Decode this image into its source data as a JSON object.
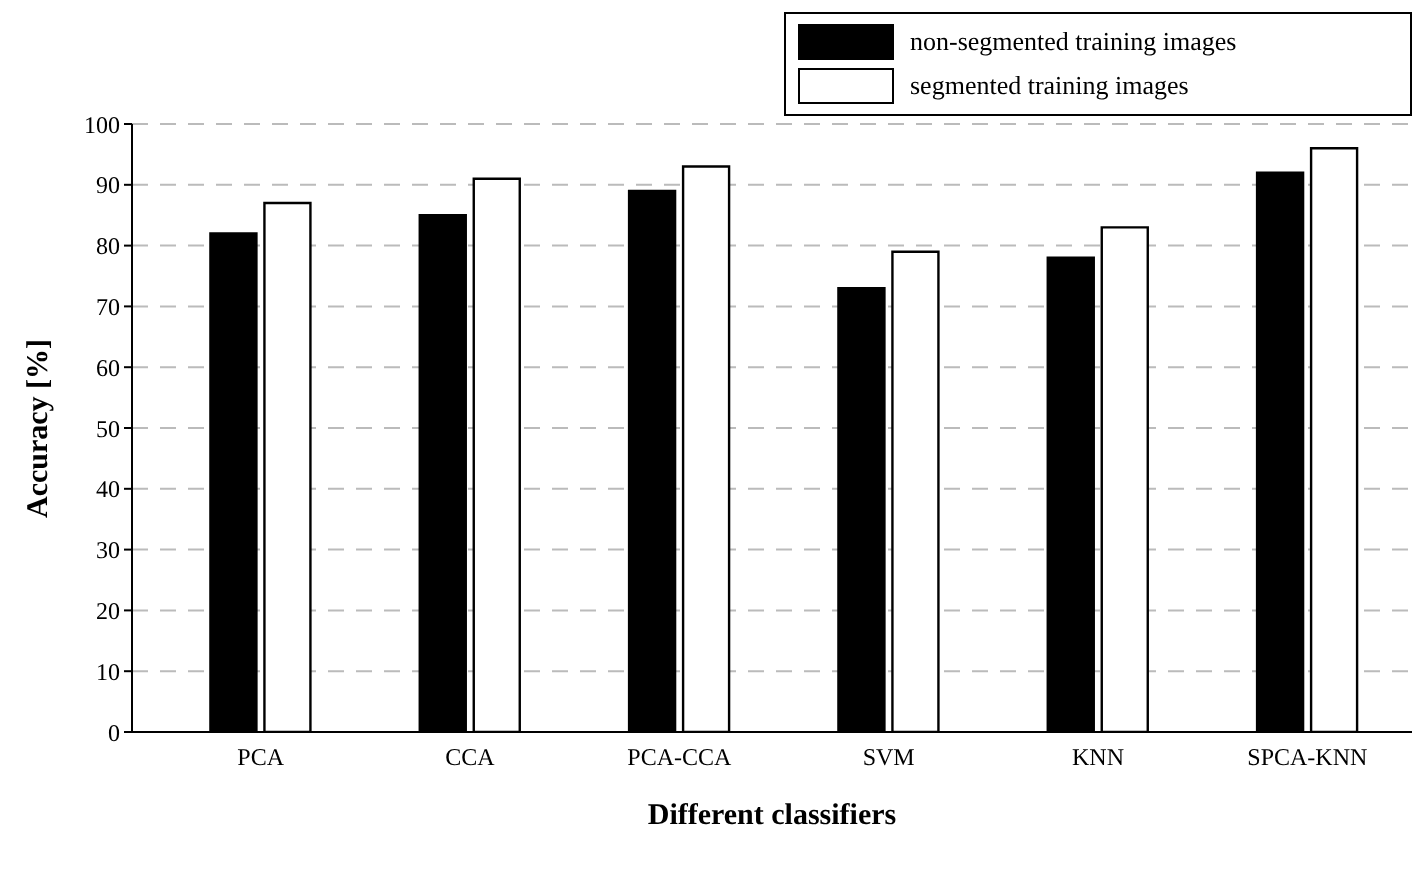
{
  "chart_data": {
    "type": "bar",
    "xlabel": "Different classifiers",
    "ylabel": "Accuracy [%]",
    "categories": [
      "PCA",
      "CCA",
      "PCA-CCA",
      "SVM",
      "KNN",
      "SPCA-KNN"
    ],
    "series": [
      {
        "name": "non-segmented training images",
        "color": "#000000",
        "values": [
          82,
          85,
          89,
          73,
          78,
          92
        ]
      },
      {
        "name": "segmented training images",
        "color": "#ffffff",
        "values": [
          87,
          91,
          93,
          79,
          83,
          96
        ]
      }
    ],
    "ylim": [
      0,
      100
    ],
    "yticks": [
      0,
      10,
      20,
      30,
      40,
      50,
      60,
      70,
      80,
      90,
      100
    ],
    "grid": "y",
    "legend": "top right"
  }
}
